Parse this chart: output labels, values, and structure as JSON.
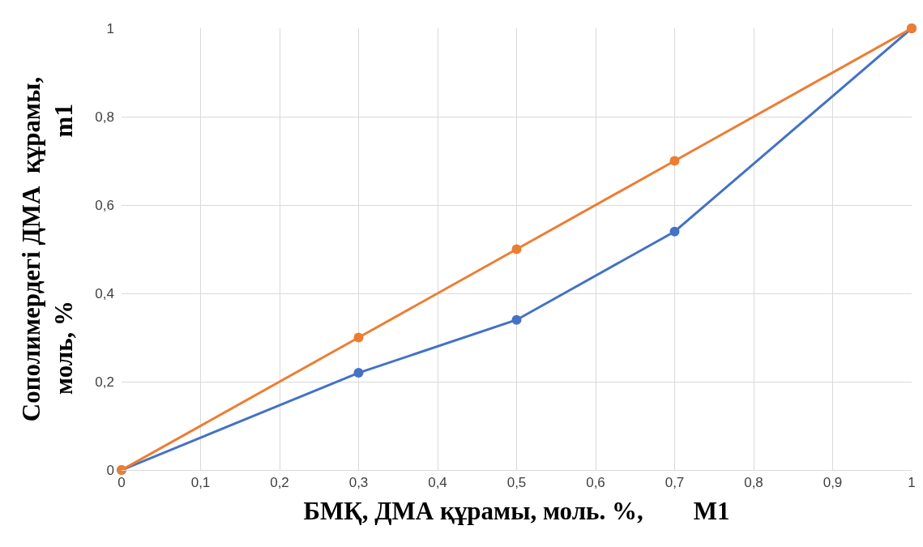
{
  "chart_data": {
    "type": "line",
    "xlabel": "БМҚ, ДМА құрамы, моль. %,        M1",
    "ylabel": "Сополимердегі ДМА  құрамы,\nмоль, %                          m1",
    "x": [
      0,
      0.3,
      0.5,
      0.7,
      1
    ],
    "series": [
      {
        "color": "#4472c4",
        "values": [
          0,
          0.22,
          0.34,
          0.54,
          1
        ]
      },
      {
        "color": "#ed7d31",
        "values": [
          0,
          0.3,
          0.5,
          0.7,
          1
        ]
      }
    ],
    "xlim": [
      0,
      1
    ],
    "xticks": [
      0,
      {
        "value": 0.1,
        "label": "0,1"
      },
      {
        "value": 0.2,
        "label": "0,2"
      },
      {
        "value": 0.3,
        "label": "0,3"
      },
      {
        "value": 0.4,
        "label": "0,4"
      },
      {
        "value": 0.5,
        "label": "0,5"
      },
      {
        "value": 0.6,
        "label": "0,6"
      },
      {
        "value": 0.7,
        "label": "0,7"
      },
      {
        "value": 0.8,
        "label": "0,8"
      },
      {
        "value": 0.9,
        "label": "0,9"
      },
      1
    ],
    "ylim": [
      0,
      1
    ],
    "yticks": [
      0,
      {
        "value": 0.2,
        "label": "0,2"
      },
      {
        "value": 0.4,
        "label": "0,4"
      },
      {
        "value": 0.6,
        "label": "0,6"
      },
      {
        "value": 0.8,
        "label": "0,8"
      },
      1
    ],
    "grid": true,
    "marker": "circle",
    "line_style": "solid"
  }
}
